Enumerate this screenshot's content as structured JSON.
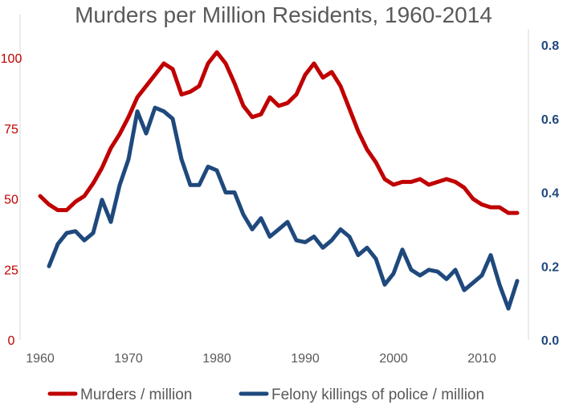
{
  "chart_data": {
    "type": "line",
    "title": "Murders per Million Residents, 1960-2014",
    "xlabel": "",
    "ylabel": "",
    "xlim": [
      1960,
      2014
    ],
    "ylim": [
      0,
      100
    ],
    "y2lim": [
      0,
      0.8
    ],
    "grid": false,
    "legend_position": "bottom",
    "x_ticks": [
      "1960",
      "1970",
      "1980",
      "1990",
      "2000",
      "2010"
    ],
    "y_ticks": [
      "0",
      "25",
      "50",
      "75",
      "100"
    ],
    "y2_ticks": [
      "0.0",
      "0.2",
      "0.4",
      "0.6",
      "0.8"
    ],
    "series": [
      {
        "name": "Murders / million",
        "axis": "left",
        "color": "#c00000",
        "x_start": 1960,
        "values": [
          51,
          48,
          46,
          46,
          49,
          51,
          55.5,
          61,
          68,
          73,
          79,
          86,
          90,
          94,
          98,
          96,
          87,
          88,
          90,
          98,
          102,
          98,
          91,
          83,
          79,
          80,
          86,
          83,
          84,
          87,
          94,
          98,
          93,
          95,
          90,
          82,
          74,
          67.5,
          63,
          57,
          55,
          56,
          56,
          57,
          55,
          56,
          57,
          56,
          54,
          50,
          48,
          47,
          47,
          45,
          45
        ]
      },
      {
        "name": "Felony killings of police / million",
        "axis": "right",
        "color": "#1f497d",
        "x_start": 1961,
        "values": [
          0.2,
          0.26,
          0.29,
          0.295,
          0.27,
          0.29,
          0.38,
          0.32,
          0.42,
          0.49,
          0.62,
          0.56,
          0.63,
          0.62,
          0.6,
          0.49,
          0.42,
          0.42,
          0.47,
          0.46,
          0.4,
          0.4,
          0.34,
          0.3,
          0.33,
          0.28,
          0.3,
          0.32,
          0.27,
          0.265,
          0.28,
          0.25,
          0.27,
          0.3,
          0.28,
          0.23,
          0.25,
          0.22,
          0.15,
          0.18,
          0.245,
          0.19,
          0.175,
          0.19,
          0.185,
          0.165,
          0.19,
          0.135,
          0.155,
          0.175,
          0.23,
          0.15,
          0.085,
          0.16
        ]
      }
    ]
  }
}
